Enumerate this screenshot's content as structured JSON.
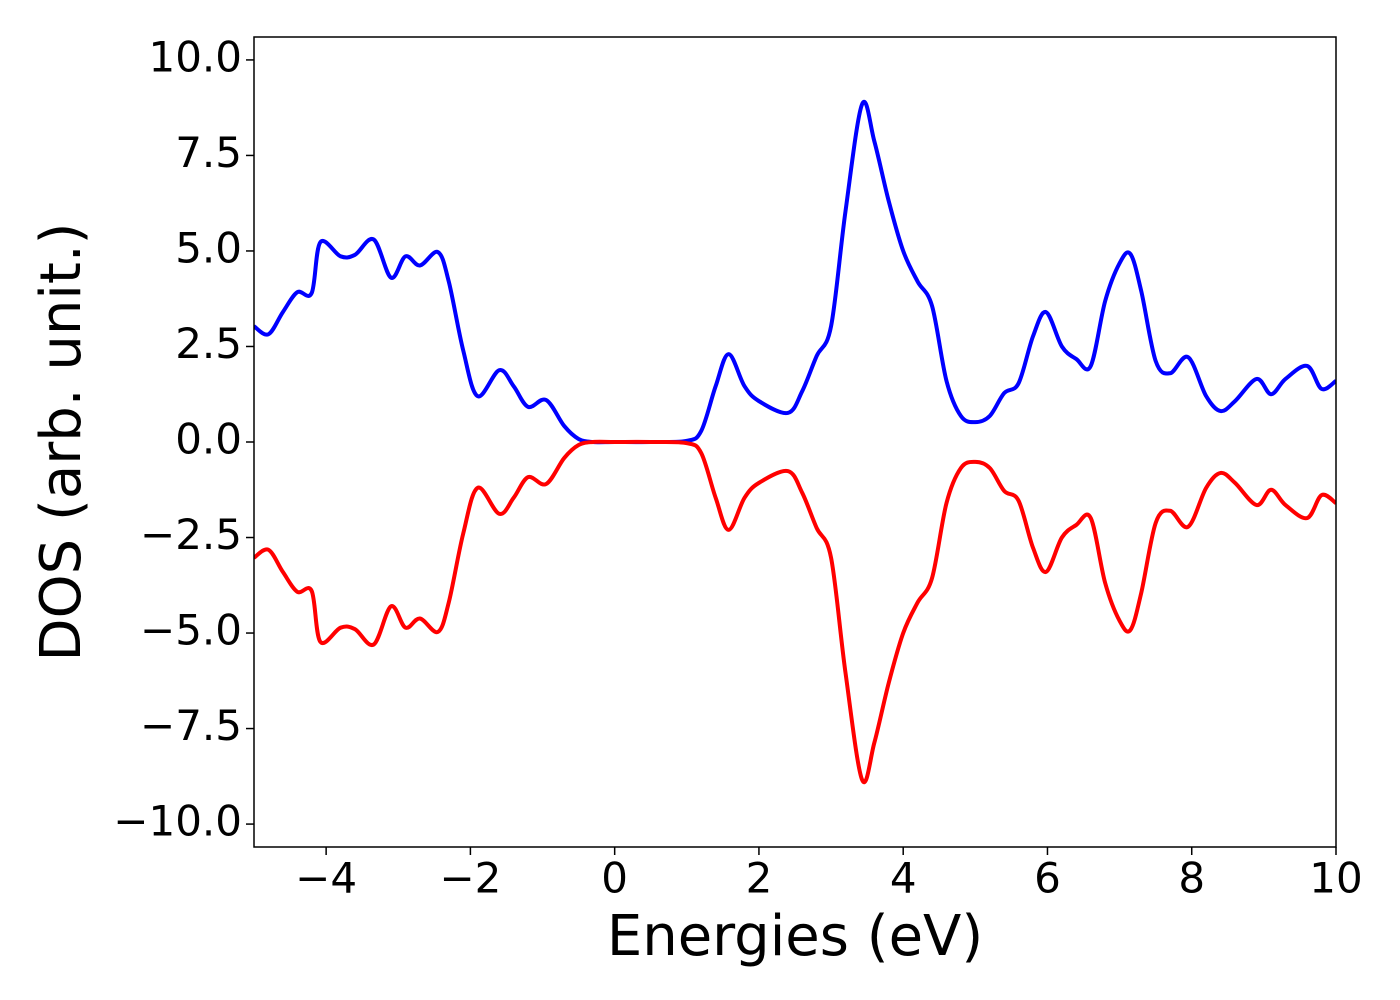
{
  "chart_data": {
    "type": "line",
    "xlabel": "Energies (eV)",
    "ylabel": "DOS (arb. unit.)",
    "x": [
      -5,
      -4.8,
      -4.6,
      -4.4,
      -4.2,
      -4.08,
      -3.8,
      -3.6,
      -3.34,
      -3.1,
      -2.9,
      -2.7,
      -2.45,
      -2.3,
      -2.1,
      -1.9,
      -1.6,
      -1.4,
      -1.2,
      -0.95,
      -0.7,
      -0.5,
      -0.3,
      0,
      0.5,
      1.0,
      1.2,
      1.4,
      1.58,
      1.8,
      2.0,
      2.4,
      2.6,
      2.8,
      3.0,
      3.2,
      3.43,
      3.6,
      3.8,
      4.0,
      4.2,
      4.4,
      4.6,
      4.8,
      5.0,
      5.2,
      5.4,
      5.6,
      5.8,
      5.98,
      6.2,
      6.4,
      6.6,
      6.8,
      7.0,
      7.15,
      7.3,
      7.5,
      7.7,
      7.95,
      8.2,
      8.4,
      8.6,
      8.9,
      9.1,
      9.3,
      9.6,
      9.8,
      10
    ],
    "series": [
      {
        "color": "#0000ff",
        "values": [
          3.03,
          2.82,
          3.4,
          3.92,
          3.9,
          5.23,
          4.86,
          4.9,
          5.3,
          4.3,
          4.86,
          4.62,
          4.97,
          4.2,
          2.4,
          1.2,
          1.88,
          1.46,
          0.92,
          1.1,
          0.42,
          0.08,
          0,
          0,
          0,
          0.03,
          0.29,
          1.46,
          2.3,
          1.46,
          1.07,
          0.76,
          1.33,
          2.25,
          3.03,
          6.04,
          8.84,
          7.87,
          6.3,
          5.0,
          4.2,
          3.56,
          1.6,
          0.68,
          0.52,
          0.68,
          1.28,
          1.54,
          2.77,
          3.4,
          2.5,
          2.17,
          1.99,
          3.69,
          4.68,
          4.92,
          3.95,
          2.12,
          1.8,
          2.22,
          1.2,
          0.81,
          1.07,
          1.65,
          1.25,
          1.65,
          1.99,
          1.39,
          1.6
        ]
      },
      {
        "color": "#ff0000",
        "values": [
          -3.03,
          -2.82,
          -3.4,
          -3.92,
          -3.9,
          -5.23,
          -4.86,
          -4.9,
          -5.3,
          -4.3,
          -4.86,
          -4.62,
          -4.97,
          -4.2,
          -2.4,
          -1.2,
          -1.88,
          -1.46,
          -0.92,
          -1.1,
          -0.42,
          -0.08,
          0,
          0,
          0,
          -0.03,
          -0.29,
          -1.46,
          -2.3,
          -1.46,
          -1.07,
          -0.76,
          -1.33,
          -2.25,
          -3.03,
          -6.04,
          -8.84,
          -7.87,
          -6.3,
          -5.0,
          -4.2,
          -3.56,
          -1.6,
          -0.68,
          -0.52,
          -0.68,
          -1.28,
          -1.54,
          -2.77,
          -3.4,
          -2.5,
          -2.17,
          -1.99,
          -3.69,
          -4.68,
          -4.92,
          -3.95,
          -2.12,
          -1.8,
          -2.22,
          -1.2,
          -0.81,
          -1.07,
          -1.65,
          -1.25,
          -1.65,
          -1.99,
          -1.39,
          -1.6
        ]
      }
    ],
    "xlim": [
      -5,
      10
    ],
    "xticks": [
      {
        "value": -4,
        "label": "−4"
      },
      {
        "value": -2,
        "label": "−2"
      },
      0,
      2,
      4,
      6,
      8,
      10
    ],
    "ylim": [
      -10.6,
      10.6
    ],
    "yticks": [
      {
        "value": 10,
        "label": "10.0"
      },
      7.5,
      {
        "value": 5,
        "label": "5.0"
      },
      2.5,
      {
        "value": 0,
        "label": "0.0"
      },
      {
        "value": -2.5,
        "label": "−2.5"
      },
      {
        "value": -5,
        "label": "−5.0"
      },
      {
        "value": -7.5,
        "label": "−7.5"
      },
      {
        "value": -10,
        "label": "−10.0"
      }
    ],
    "grid": false
  }
}
